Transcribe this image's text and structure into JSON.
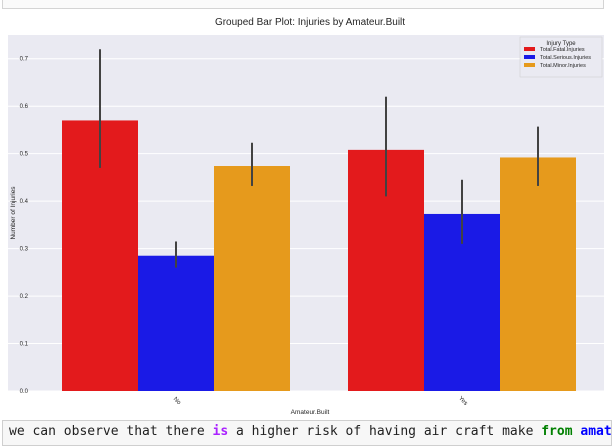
{
  "chart_data": {
    "type": "bar",
    "title": "Grouped Bar Plot: Injuries by Amateur.Built",
    "xlabel": "Amateur.Built",
    "ylabel": "Number of Injuries",
    "categories": [
      "No",
      "Yes"
    ],
    "ylim": [
      0,
      0.75
    ],
    "yticks": [
      "0.0",
      "0.1",
      "0.2",
      "0.3",
      "0.4",
      "0.5",
      "0.6",
      "0.7"
    ],
    "legend_title": "Injury Type",
    "legend_position": "top-right",
    "grid": true,
    "series": [
      {
        "name": "Total.Fatal.Injuries",
        "color": "#e31a1c",
        "values": [
          0.57,
          0.508
        ],
        "ci": [
          [
            0.47,
            0.72
          ],
          [
            0.41,
            0.62
          ]
        ]
      },
      {
        "name": "Total.Serious.Injuries",
        "color": "#1a1ae6",
        "values": [
          0.285,
          0.373
        ],
        "ci": [
          [
            0.26,
            0.315
          ],
          [
            0.31,
            0.445
          ]
        ]
      },
      {
        "name": "Total.Minor.Injuries",
        "color": "#e69a1c",
        "values": [
          0.474,
          0.492
        ],
        "ci": [
          [
            0.432,
            0.523
          ],
          [
            0.432,
            0.557
          ]
        ]
      }
    ]
  },
  "code_cell": {
    "part1": "we can observe that there ",
    "kw_is": "is",
    "part2": " a higher risk of having air craft make ",
    "kw_from": "from",
    "part3": " ",
    "tail": "amat"
  }
}
